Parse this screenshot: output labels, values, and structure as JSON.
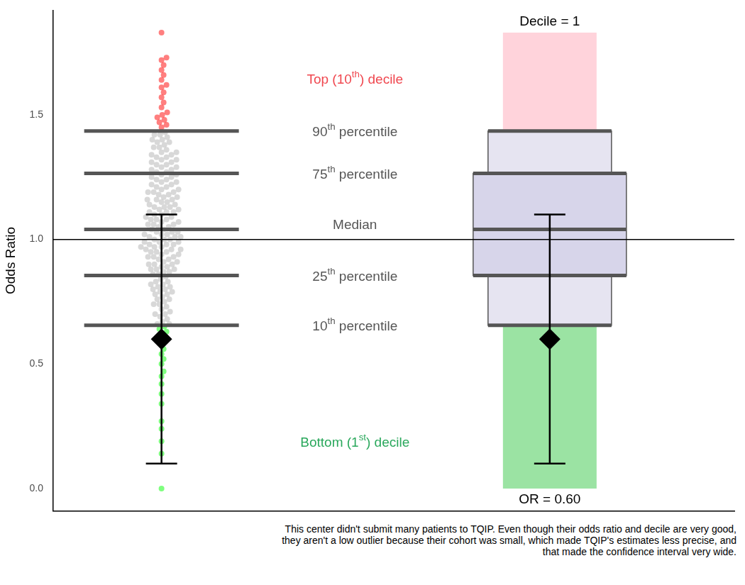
{
  "chart_data": {
    "type": "scatter",
    "ylabel": "Odds Ratio",
    "ylim": [
      -0.09,
      1.92
    ],
    "yticks": [
      {
        "value": 0,
        "label": "0.0"
      },
      {
        "value": 0.5,
        "label": "0.5"
      },
      {
        "value": 1,
        "label": "1.0"
      },
      {
        "value": 1.5,
        "label": "1.5"
      }
    ],
    "tick_labels": "y",
    "grid": false,
    "series": [
      {
        "color": "#ff0000",
        "values": [
          1.45,
          1.46,
          1.47,
          1.48,
          1.49,
          1.5,
          1.51,
          1.53,
          1.55,
          1.57,
          1.59,
          1.61,
          1.62,
          1.64,
          1.66,
          1.68,
          1.7,
          1.72,
          1.73,
          1.83
        ]
      },
      {
        "color": "#bebebe",
        "values": [
          0.66,
          0.66,
          0.67,
          0.68,
          0.69,
          0.7,
          0.7,
          0.71,
          0.72,
          0.73,
          0.74,
          0.74,
          0.75,
          0.76,
          0.76,
          0.77,
          0.78,
          0.78,
          0.79,
          0.79,
          0.8,
          0.8,
          0.81,
          0.81,
          0.82,
          0.82,
          0.83,
          0.83,
          0.84,
          0.85,
          0.86,
          0.86,
          0.87,
          0.87,
          0.88,
          0.88,
          0.89,
          0.89,
          0.9,
          0.9,
          0.91,
          0.91,
          0.92,
          0.92,
          0.93,
          0.93,
          0.94,
          0.94,
          0.95,
          0.95,
          0.96,
          0.96,
          0.96,
          0.97,
          0.97,
          0.98,
          0.98,
          0.98,
          0.99,
          0.99,
          1.0,
          1.0,
          1.0,
          1.01,
          1.01,
          1.01,
          1.02,
          1.02,
          1.02,
          1.03,
          1.03,
          1.03,
          1.04,
          1.04,
          0.97,
          0.99,
          0.95,
          0.93,
          0.9,
          0.88,
          1.05,
          1.05,
          1.06,
          1.06,
          1.07,
          1.07,
          1.08,
          1.08,
          1.09,
          1.09,
          1.1,
          1.1,
          1.11,
          1.11,
          1.12,
          1.12,
          1.13,
          1.13,
          1.14,
          1.14,
          1.15,
          1.15,
          1.16,
          1.16,
          1.17,
          1.17,
          1.18,
          1.18,
          1.19,
          1.19,
          1.2,
          1.2,
          1.21,
          1.21,
          1.22,
          1.22,
          1.23,
          1.23,
          1.24,
          1.24,
          1.25,
          1.25,
          1.26,
          1.26,
          1.06,
          1.08,
          1.11,
          1.13,
          1.16,
          1.19,
          1.27,
          1.27,
          1.28,
          1.28,
          1.29,
          1.29,
          1.3,
          1.3,
          1.31,
          1.31,
          1.32,
          1.32,
          1.33,
          1.33,
          1.34,
          1.34,
          1.35,
          1.35,
          1.36,
          1.37,
          1.37,
          1.38,
          1.39,
          1.39,
          1.4,
          1.4,
          1.41,
          1.42,
          1.42,
          1.43
        ]
      },
      {
        "color": "#00ff00",
        "values": [
          0.0,
          0.14,
          0.19,
          0.24,
          0.27,
          0.34,
          0.38,
          0.42,
          0.45,
          0.47,
          0.5,
          0.52,
          0.54,
          0.56,
          0.58,
          0.6,
          0.62,
          0.63,
          0.64,
          0.65
        ]
      }
    ],
    "reference_line": 1.0,
    "percentiles": [
      {
        "value": 0.655,
        "label": "10th percentile"
      },
      {
        "value": 0.855,
        "label": "25th percentile"
      },
      {
        "value": 1.04,
        "label": "Median"
      },
      {
        "value": 1.265,
        "label": "75th percentile"
      },
      {
        "value": 1.435,
        "label": "90th percentile"
      }
    ],
    "top_decile": {
      "range": [
        1.435,
        1.83
      ],
      "label": "Top (10th) decile"
    },
    "bottom_decile": {
      "range": [
        0,
        0.655
      ],
      "label": "Bottom (1st) decile"
    },
    "center": {
      "odds_ratio": 0.6,
      "ci": [
        0.1,
        1.1
      ],
      "decile": 1,
      "decile_label": "Decile = 1",
      "or_label": "OR = 0.60"
    },
    "caption": "This center didn't submit many patients to TQIP. Even though their odds ratio and decile are very good, they aren't a low outlier because their cohort was small, which made TQIP's estimates less precise, and that made the confidence interval very wide."
  }
}
